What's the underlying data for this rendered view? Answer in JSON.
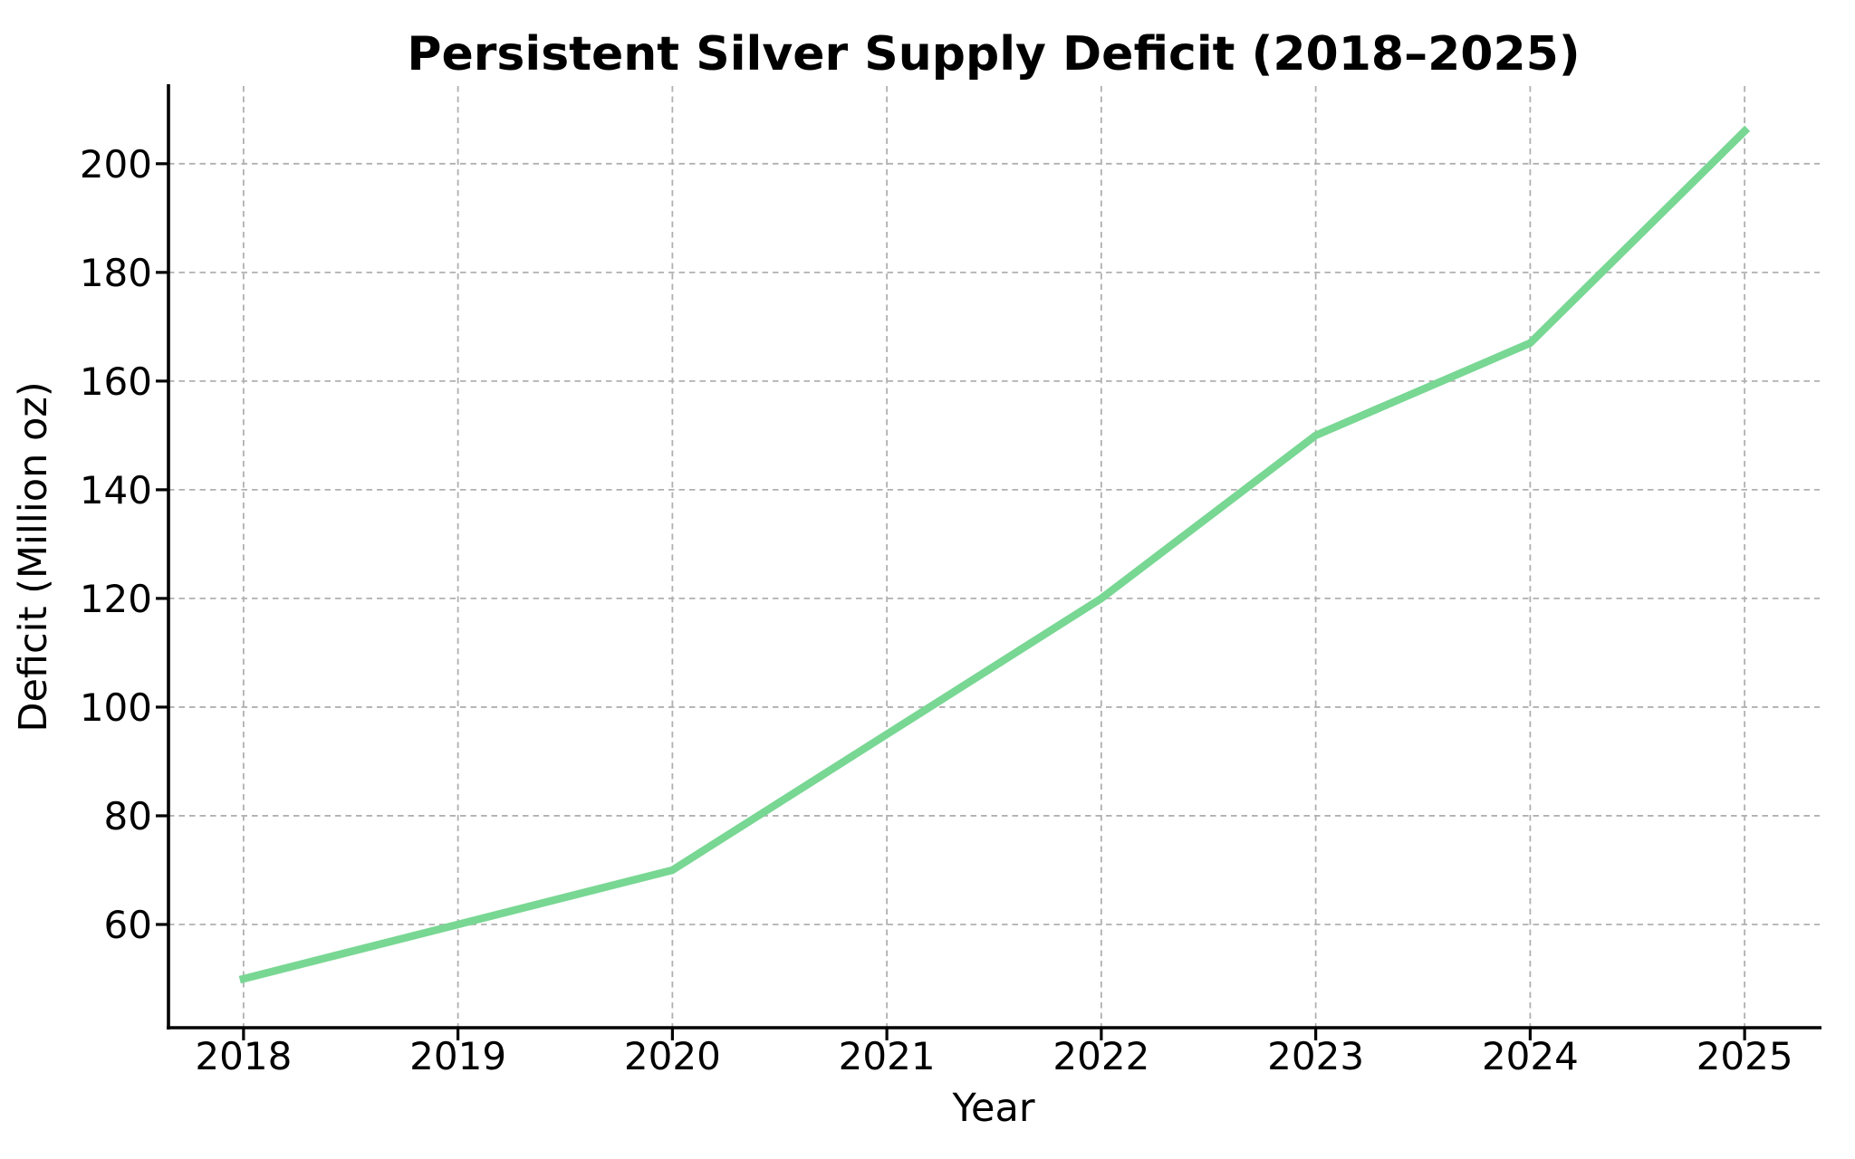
{
  "chart_data": {
    "type": "line",
    "title": "Persistent Silver Supply Deficit (2018–2025)",
    "xlabel": "Year",
    "ylabel": "Deficit (Million oz)",
    "x": [
      2018,
      2019,
      2020,
      2021,
      2022,
      2023,
      2024,
      2025
    ],
    "series": [
      {
        "name": "deficit",
        "values": [
          50,
          60,
          70,
          95,
          120,
          150,
          167,
          206
        ]
      }
    ],
    "x_ticks": [
      2018,
      2019,
      2020,
      2021,
      2022,
      2023,
      2024,
      2025
    ],
    "y_ticks": [
      60,
      80,
      100,
      120,
      140,
      160,
      180,
      200
    ],
    "xlim": [
      2017.65,
      2025.35
    ],
    "ylim": [
      41.0,
      214.3
    ],
    "grid": true,
    "grid_style": "dashed",
    "legend_position": "none",
    "colors": {
      "line": "#78d793",
      "grid": "#b0b0b0",
      "axis": "#000000",
      "text": "#000000",
      "background": "#ffffff"
    }
  }
}
